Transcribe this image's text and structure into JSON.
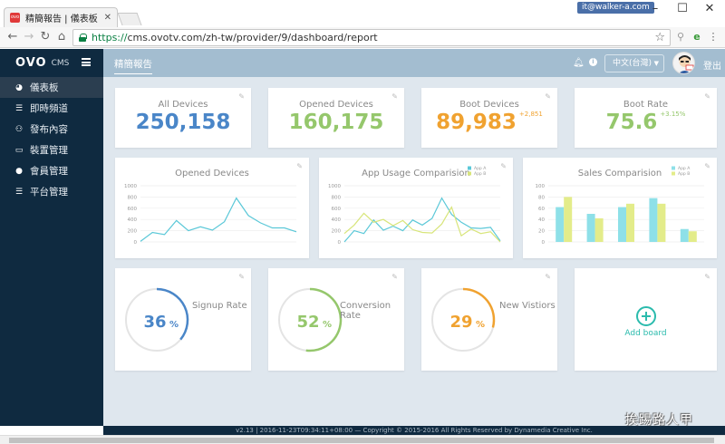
{
  "browser": {
    "tab_title": "精簡報告 | 儀表板 | OVO",
    "tab_favicon": "ovo",
    "user": "it@walker-a.com",
    "url_scheme": "https://",
    "url_rest": "cms.ovotv.com/zh-tw/provider/9/dashboard/report"
  },
  "app": {
    "logo": "OVO",
    "logo_suffix": "CMS",
    "page_title": "精簡報告",
    "language": "中文(台灣)",
    "logout": "登出"
  },
  "sidebar": {
    "items": [
      {
        "label": "儀表板",
        "icon": "dashboard-icon"
      },
      {
        "label": "即時頻道",
        "icon": "list-icon"
      },
      {
        "label": "發布內容",
        "icon": "publish-icon"
      },
      {
        "label": "裝置管理",
        "icon": "monitor-icon"
      },
      {
        "label": "會員管理",
        "icon": "user-icon"
      },
      {
        "label": "平台管理",
        "icon": "list-icon"
      }
    ]
  },
  "stats": [
    {
      "title": "All Devices",
      "value": "250,158",
      "delta": "",
      "color": "#4a86c8"
    },
    {
      "title": "Opened Devices",
      "value": "160,175",
      "delta": "",
      "color": "#95c76c"
    },
    {
      "title": "Boot Devices",
      "value": "89,983",
      "delta": "+2,851",
      "color": "#f0a230"
    },
    {
      "title": "Boot Rate",
      "value": "75.6",
      "delta": "+3.15%",
      "color": "#95c76c"
    }
  ],
  "chart_data": [
    {
      "type": "line",
      "title": "Opened Devices",
      "x": [
        1,
        2,
        3,
        4,
        5,
        6,
        7,
        8,
        9,
        10,
        11,
        12,
        13,
        14
      ],
      "series": [
        {
          "values": [
            10,
            170,
            130,
            380,
            200,
            270,
            210,
            360,
            780,
            470,
            340,
            250,
            250,
            180
          ]
        }
      ],
      "ylim": [
        0,
        1000
      ],
      "yticks": [
        0,
        200,
        400,
        600,
        800,
        1000
      ],
      "color": "#5bc8d8"
    },
    {
      "type": "line",
      "title": "App Usage Comparision",
      "x": [
        1,
        2,
        3,
        4,
        5,
        6,
        7,
        8,
        9,
        10,
        11,
        12,
        13,
        14,
        15,
        16,
        17
      ],
      "series": [
        {
          "name": "App A",
          "values": [
            0,
            200,
            150,
            390,
            210,
            280,
            200,
            390,
            300,
            420,
            780,
            490,
            350,
            250,
            240,
            260,
            20
          ],
          "color": "#5bc8d8"
        },
        {
          "name": "App B",
          "values": [
            150,
            300,
            510,
            350,
            400,
            290,
            380,
            220,
            170,
            160,
            320,
            620,
            110,
            230,
            150,
            180,
            0
          ],
          "color": "#d8e57a"
        }
      ],
      "ylim": [
        0,
        1000
      ],
      "yticks": [
        0,
        200,
        400,
        600,
        800,
        1000
      ]
    },
    {
      "type": "bar",
      "title": "Sales Comparision",
      "categories": [
        "1",
        "2",
        "3",
        "4",
        "5"
      ],
      "series": [
        {
          "name": "App A",
          "values": [
            62,
            50,
            62,
            78,
            23
          ],
          "color": "#8ee0e8"
        },
        {
          "name": "App B",
          "values": [
            80,
            42,
            68,
            68,
            19
          ],
          "color": "#e3ec8a"
        }
      ],
      "ylim": [
        0,
        100
      ],
      "yticks": [
        0,
        20,
        40,
        60,
        80,
        100
      ]
    }
  ],
  "gauges": [
    {
      "label": "Signup Rate",
      "value": 36,
      "unit": "%",
      "color": "#4a86c8"
    },
    {
      "label": "Conversion Rate",
      "value": 52,
      "unit": "%",
      "color": "#95c76c"
    },
    {
      "label": "New Vistiors",
      "value": 29,
      "unit": "%",
      "color": "#f0a230"
    }
  ],
  "add_board": "Add board",
  "footer": "v2.13 | 2016-11-23T09:34:11+08:00 — Copyright © 2015-2016 All Rights Reserved by Dynamedia Creative Inc.",
  "watermark": "挨踢路人甲"
}
